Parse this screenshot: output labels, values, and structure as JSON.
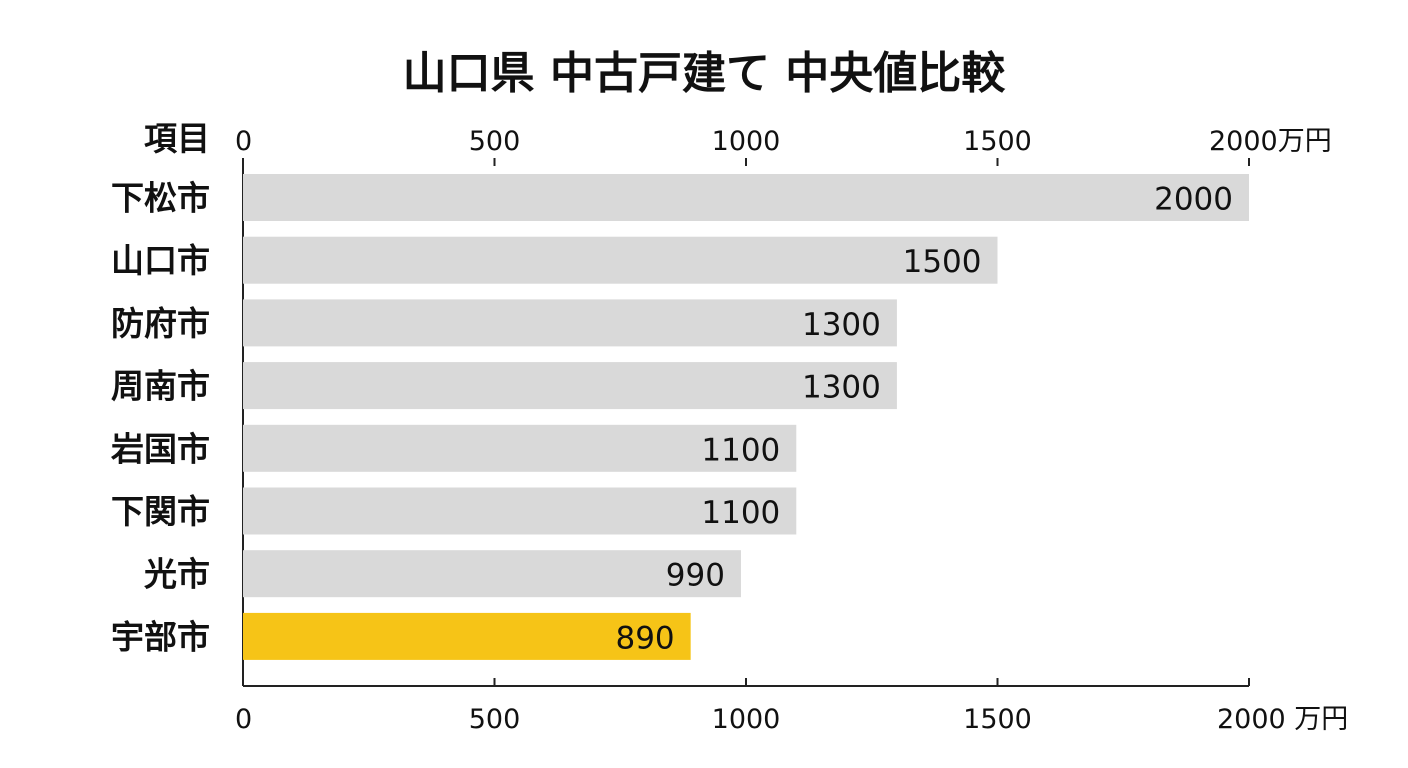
{
  "chart_data": {
    "type": "bar",
    "orientation": "horizontal",
    "title": "山口県 中古戸建て 中央値比較",
    "category_header": "項目",
    "categories": [
      "下松市",
      "山口市",
      "防府市",
      "周南市",
      "岩国市",
      "下関市",
      "光市",
      "宇部市"
    ],
    "values": [
      2000,
      1500,
      1300,
      1300,
      1100,
      1100,
      990,
      890
    ],
    "value_labels": [
      "2000",
      "1500",
      "1300",
      "1300",
      "1100",
      "1100",
      "990",
      "890"
    ],
    "highlight_category": "宇部市",
    "xlim": [
      0,
      2000
    ],
    "ticks": [
      0,
      500,
      1000,
      1500,
      2000
    ],
    "top_tick_labels": [
      "0",
      "500",
      "1000",
      "1500",
      "2000万円"
    ],
    "bottom_tick_labels": [
      "0",
      "500",
      "1000",
      "1500",
      "2000 万円"
    ],
    "colors": {
      "bar": "#d9d9d9",
      "highlight": "#f6c417"
    },
    "grid": false,
    "legend": "none"
  }
}
